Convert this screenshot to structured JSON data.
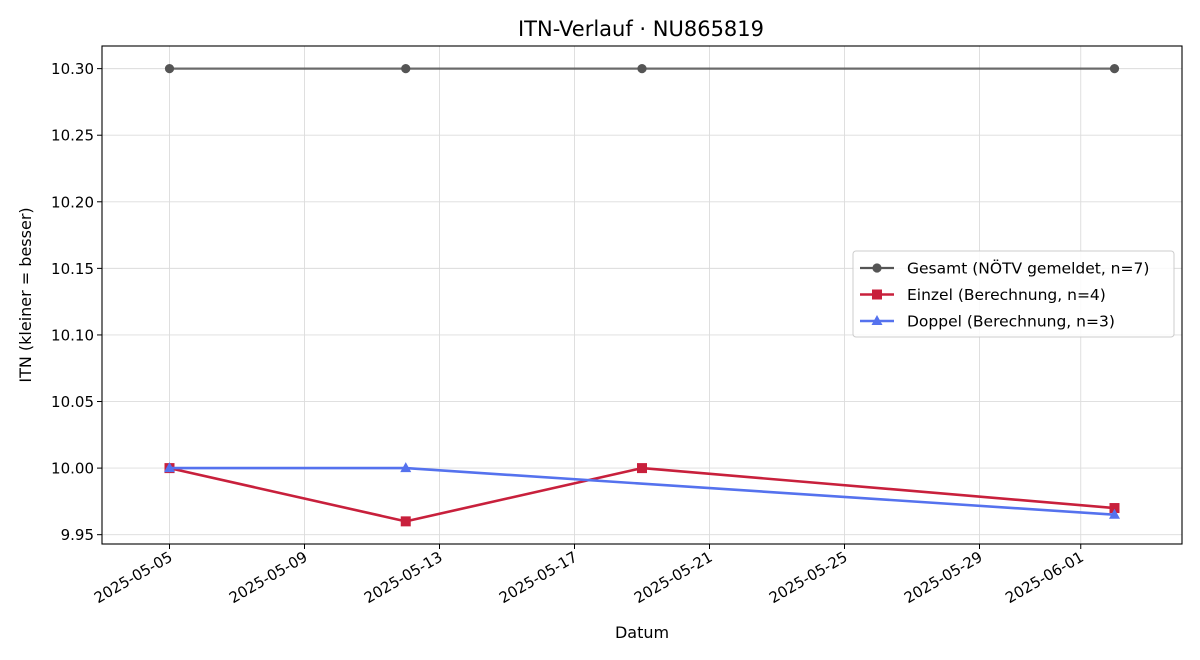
{
  "chart_data": {
    "type": "line",
    "title": "ITN-Verlauf · NU865819",
    "xlabel": "Datum",
    "ylabel": "ITN  (kleiner = besser)",
    "x_type": "date",
    "xlim": [
      "2025-05-03",
      "2025-06-04"
    ],
    "ylim": [
      9.943,
      10.317
    ],
    "x_ticks": [
      "2025-05-05",
      "2025-05-09",
      "2025-05-13",
      "2025-05-17",
      "2025-05-21",
      "2025-05-25",
      "2025-05-29",
      "2025-06-01"
    ],
    "y_ticks": [
      9.95,
      10.0,
      10.05,
      10.1,
      10.15,
      10.2,
      10.25,
      10.3
    ],
    "y_tick_labels": [
      "9.95",
      "10.00",
      "10.05",
      "10.10",
      "10.15",
      "10.20",
      "10.25",
      "10.30"
    ],
    "grid": true,
    "legend_position": "center-right",
    "series": [
      {
        "name": "Gesamt (NÖTV gemeldet, n=7)",
        "color": "#555555",
        "marker": "circle",
        "x": [
          "2025-05-05",
          "2025-05-12",
          "2025-05-19",
          "2025-06-02"
        ],
        "y": [
          10.3,
          10.3,
          10.3,
          10.3
        ]
      },
      {
        "name": "Einzel (Berechnung, n=4)",
        "color": "#c8203c",
        "marker": "square",
        "x": [
          "2025-05-05",
          "2025-05-12",
          "2025-05-19",
          "2025-06-02"
        ],
        "y": [
          10.0,
          9.96,
          10.0,
          9.97
        ]
      },
      {
        "name": "Doppel (Berechnung, n=3)",
        "color": "#5572ee",
        "marker": "triangle",
        "x": [
          "2025-05-05",
          "2025-05-12",
          "2025-06-02"
        ],
        "y": [
          10.0,
          10.0,
          9.965
        ]
      }
    ]
  }
}
